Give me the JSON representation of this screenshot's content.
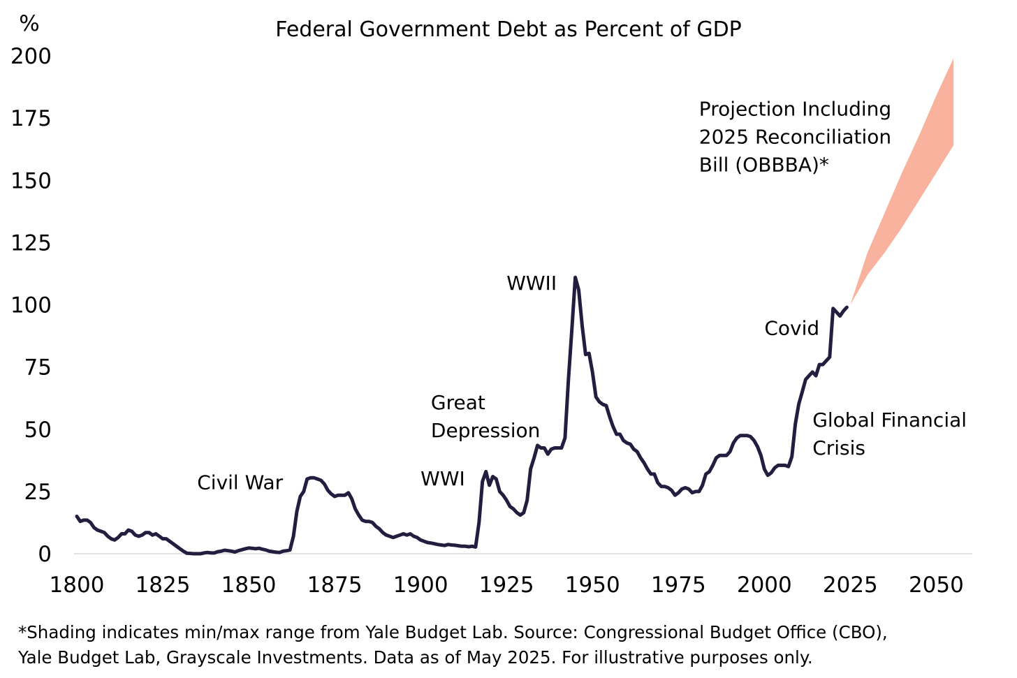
{
  "chart_data": {
    "type": "line",
    "title": "Federal Government Debt as Percent of GDP",
    "ylabel": "%",
    "xlabel": "",
    "xlim": [
      1800,
      2055
    ],
    "ylim": [
      0,
      200
    ],
    "xticks": [
      "1800",
      "1825",
      "1850",
      "1875",
      "1900",
      "1925",
      "1950",
      "1975",
      "2000",
      "2025",
      "2050"
    ],
    "yticks": [
      "0",
      "25",
      "50",
      "75",
      "100",
      "125",
      "150",
      "175",
      "200"
    ],
    "grid": false,
    "line_color": "#241d40",
    "band_color": "#f9b29e",
    "series": [
      {
        "values": [
          [
            1800,
            15
          ],
          [
            1801,
            13
          ],
          [
            1802,
            13.5
          ],
          [
            1803,
            13.5
          ],
          [
            1804,
            12.5
          ],
          [
            1805,
            10.5
          ],
          [
            1806,
            9.5
          ],
          [
            1807,
            9
          ],
          [
            1808,
            8.5
          ],
          [
            1809,
            7
          ],
          [
            1810,
            6
          ],
          [
            1811,
            5.5
          ],
          [
            1812,
            6.5
          ],
          [
            1813,
            8
          ],
          [
            1814,
            8
          ],
          [
            1815,
            9.5
          ],
          [
            1816,
            9
          ],
          [
            1817,
            7.5
          ],
          [
            1818,
            7
          ],
          [
            1819,
            7.5
          ],
          [
            1820,
            8.5
          ],
          [
            1821,
            8.5
          ],
          [
            1822,
            7.5
          ],
          [
            1823,
            8
          ],
          [
            1824,
            7
          ],
          [
            1825,
            6
          ],
          [
            1826,
            6
          ],
          [
            1827,
            5
          ],
          [
            1828,
            4
          ],
          [
            1829,
            3
          ],
          [
            1830,
            2
          ],
          [
            1831,
            1
          ],
          [
            1832,
            0.2
          ],
          [
            1833,
            0.1
          ],
          [
            1834,
            0
          ],
          [
            1835,
            0
          ],
          [
            1836,
            0
          ],
          [
            1837,
            0.3
          ],
          [
            1838,
            0.5
          ],
          [
            1839,
            0.3
          ],
          [
            1840,
            0.3
          ],
          [
            1841,
            0.8
          ],
          [
            1842,
            1
          ],
          [
            1843,
            1.4
          ],
          [
            1844,
            1.2
          ],
          [
            1845,
            1
          ],
          [
            1846,
            0.7
          ],
          [
            1847,
            1.2
          ],
          [
            1848,
            1.6
          ],
          [
            1849,
            2
          ],
          [
            1850,
            2.3
          ],
          [
            1851,
            2.2
          ],
          [
            1852,
            2
          ],
          [
            1853,
            2.2
          ],
          [
            1854,
            1.8
          ],
          [
            1855,
            1.5
          ],
          [
            1856,
            1
          ],
          [
            1857,
            0.8
          ],
          [
            1858,
            0.6
          ],
          [
            1859,
            0.5
          ],
          [
            1860,
            1
          ],
          [
            1861,
            1.2
          ],
          [
            1862,
            1.5
          ],
          [
            1863,
            7
          ],
          [
            1864,
            17
          ],
          [
            1865,
            23
          ],
          [
            1866,
            25
          ],
          [
            1867,
            30
          ],
          [
            1868,
            30.5
          ],
          [
            1869,
            30.5
          ],
          [
            1870,
            30
          ],
          [
            1871,
            29.5
          ],
          [
            1872,
            28
          ],
          [
            1873,
            25.5
          ],
          [
            1874,
            24
          ],
          [
            1875,
            23
          ],
          [
            1876,
            23.5
          ],
          [
            1877,
            23.5
          ],
          [
            1878,
            23.5
          ],
          [
            1879,
            24.5
          ],
          [
            1880,
            22
          ],
          [
            1881,
            18
          ],
          [
            1882,
            15.5
          ],
          [
            1883,
            13.5
          ],
          [
            1884,
            13
          ],
          [
            1885,
            13
          ],
          [
            1886,
            12.5
          ],
          [
            1887,
            11
          ],
          [
            1888,
            10
          ],
          [
            1889,
            8.5
          ],
          [
            1890,
            7.5
          ],
          [
            1891,
            7
          ],
          [
            1892,
            6.5
          ],
          [
            1893,
            7
          ],
          [
            1894,
            7.5
          ],
          [
            1895,
            8
          ],
          [
            1896,
            7.5
          ],
          [
            1897,
            8
          ],
          [
            1898,
            7
          ],
          [
            1899,
            6.5
          ],
          [
            1900,
            5.5
          ],
          [
            1901,
            5
          ],
          [
            1902,
            4.5
          ],
          [
            1903,
            4.3
          ],
          [
            1904,
            4
          ],
          [
            1905,
            3.7
          ],
          [
            1906,
            3.5
          ],
          [
            1907,
            3.3
          ],
          [
            1908,
            3.7
          ],
          [
            1909,
            3.5
          ],
          [
            1910,
            3.4
          ],
          [
            1911,
            3.2
          ],
          [
            1912,
            3
          ],
          [
            1913,
            3
          ],
          [
            1914,
            2.8
          ],
          [
            1915,
            3
          ],
          [
            1916,
            2.7
          ],
          [
            1917,
            12.5
          ],
          [
            1918,
            29
          ],
          [
            1919,
            33
          ],
          [
            1920,
            27.5
          ],
          [
            1921,
            31
          ],
          [
            1922,
            30
          ],
          [
            1923,
            25
          ],
          [
            1924,
            23.5
          ],
          [
            1925,
            21.5
          ],
          [
            1926,
            19
          ],
          [
            1927,
            18
          ],
          [
            1928,
            16.5
          ],
          [
            1929,
            15.5
          ],
          [
            1930,
            16.5
          ],
          [
            1931,
            21.5
          ],
          [
            1932,
            34
          ],
          [
            1933,
            38.5
          ],
          [
            1934,
            43.5
          ],
          [
            1935,
            42.5
          ],
          [
            1936,
            42.5
          ],
          [
            1937,
            40
          ],
          [
            1938,
            42
          ],
          [
            1939,
            42.5
          ],
          [
            1940,
            42.5
          ],
          [
            1941,
            42.5
          ],
          [
            1942,
            46.5
          ],
          [
            1943,
            70
          ],
          [
            1944,
            90
          ],
          [
            1945,
            111
          ],
          [
            1946,
            106
          ],
          [
            1947,
            91.5
          ],
          [
            1948,
            80
          ],
          [
            1949,
            80.5
          ],
          [
            1950,
            73
          ],
          [
            1951,
            63
          ],
          [
            1952,
            61
          ],
          [
            1953,
            60
          ],
          [
            1954,
            59.5
          ],
          [
            1955,
            55
          ],
          [
            1956,
            51
          ],
          [
            1957,
            48
          ],
          [
            1958,
            48
          ],
          [
            1959,
            45.5
          ],
          [
            1960,
            44.5
          ],
          [
            1961,
            44
          ],
          [
            1962,
            42
          ],
          [
            1963,
            41
          ],
          [
            1964,
            38.5
          ],
          [
            1965,
            36.5
          ],
          [
            1966,
            34
          ],
          [
            1967,
            32
          ],
          [
            1968,
            32
          ],
          [
            1969,
            28.5
          ],
          [
            1970,
            27
          ],
          [
            1971,
            27
          ],
          [
            1972,
            26.5
          ],
          [
            1973,
            25.5
          ],
          [
            1974,
            23.5
          ],
          [
            1975,
            24.5
          ],
          [
            1976,
            26
          ],
          [
            1977,
            26.5
          ],
          [
            1978,
            26
          ],
          [
            1979,
            24.5
          ],
          [
            1980,
            25
          ],
          [
            1981,
            25
          ],
          [
            1982,
            27.5
          ],
          [
            1983,
            32
          ],
          [
            1984,
            33
          ],
          [
            1985,
            35.5
          ],
          [
            1986,
            38.5
          ],
          [
            1987,
            39.5
          ],
          [
            1988,
            39.5
          ],
          [
            1989,
            39.5
          ],
          [
            1990,
            41
          ],
          [
            1991,
            44.5
          ],
          [
            1992,
            46.5
          ],
          [
            1993,
            47.5
          ],
          [
            1994,
            47.5
          ],
          [
            1995,
            47.5
          ],
          [
            1996,
            47
          ],
          [
            1997,
            45.5
          ],
          [
            1998,
            43
          ],
          [
            1999,
            39.5
          ],
          [
            2000,
            34
          ],
          [
            2001,
            31.5
          ],
          [
            2002,
            32.5
          ],
          [
            2003,
            34.5
          ],
          [
            2004,
            35.5
          ],
          [
            2005,
            35.5
          ],
          [
            2006,
            35.5
          ],
          [
            2007,
            35
          ],
          [
            2008,
            39
          ],
          [
            2009,
            52
          ],
          [
            2010,
            60
          ],
          [
            2011,
            65
          ],
          [
            2012,
            70
          ],
          [
            2013,
            71.5
          ],
          [
            2014,
            73
          ],
          [
            2015,
            71.5
          ],
          [
            2016,
            76
          ],
          [
            2017,
            76
          ],
          [
            2018,
            77.5
          ],
          [
            2019,
            79
          ],
          [
            2020,
            98.5
          ],
          [
            2021,
            97
          ],
          [
            2022,
            95.5
          ],
          [
            2023,
            97.5
          ],
          [
            2024,
            99
          ]
        ]
      }
    ],
    "projection_band": {
      "x": [
        2025,
        2030,
        2035,
        2040,
        2045,
        2050,
        2055
      ],
      "min": [
        100,
        112,
        121,
        131,
        142,
        153,
        164
      ],
      "max": [
        100,
        121,
        137,
        153,
        168,
        184,
        199
      ]
    },
    "annotations": [
      {
        "name": "civil-war",
        "text": [
          "Civil War"
        ],
        "x": 1835,
        "y": 26
      },
      {
        "name": "wwi",
        "text": [
          "WWI"
        ],
        "x": 1900,
        "y": 27.5
      },
      {
        "name": "great-depression",
        "text": [
          "Great",
          "Depression"
        ],
        "x": 1903,
        "y": 58
      },
      {
        "name": "wwii",
        "text": [
          "WWII"
        ],
        "x": 1925,
        "y": 106
      },
      {
        "name": "covid",
        "text": [
          "Covid"
        ],
        "x": 2000,
        "y": 88
      },
      {
        "name": "gfc",
        "text": [
          "Global Financial",
          "Crisis"
        ],
        "x": 2014,
        "y": 51
      },
      {
        "name": "projection",
        "text": [
          "Projection Including",
          "2025 Reconciliation",
          "Bill (OBBBA)*"
        ],
        "x": 1981,
        "y": 176
      }
    ]
  },
  "footnote": {
    "line1": "*Shading indicates min/max range from Yale Budget Lab. Source: Congressional Budget Office (CBO),",
    "line2": "Yale Budget Lab, Grayscale Investments. Data as of May 2025. For illustrative purposes only."
  }
}
